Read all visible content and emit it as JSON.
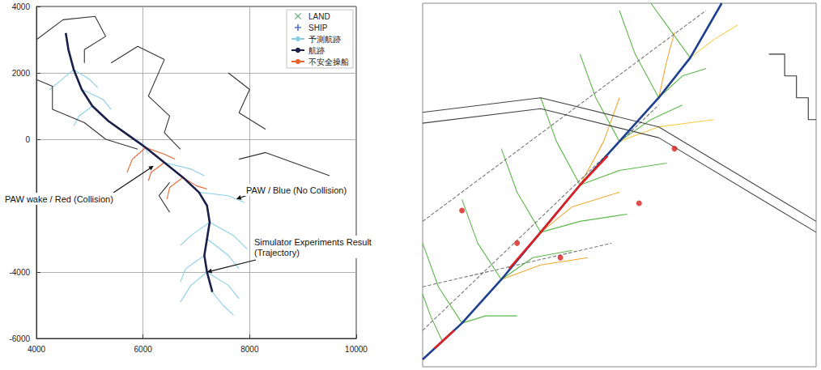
{
  "chart_data": [
    {
      "type": "line",
      "xlim": [
        4000,
        10000
      ],
      "ylim": [
        -6000,
        4000
      ],
      "xticks": [
        4000,
        6000,
        8000,
        10000
      ],
      "yticks": [
        -6000,
        -4000,
        0,
        2000,
        4000
      ],
      "grid": true,
      "legend": "upper right",
      "series": [
        {
          "name": "LAND",
          "type": "scatter",
          "marker": "x",
          "color": "#2e8b57",
          "x": [],
          "values": []
        },
        {
          "name": "SHIP",
          "type": "scatter",
          "marker": "plus",
          "color": "#1f4fbf",
          "x": [],
          "values": []
        },
        {
          "name": "予測航跡",
          "type": "line",
          "color": "#8ccfe8",
          "line_style": "solid",
          "x": [
            4700,
            4400,
            4250,
            null,
            4700,
            5000,
            5150,
            null,
            4850,
            5250,
            5400,
            null,
            5050,
            4800,
            4700,
            null,
            5700,
            6000,
            6100,
            null,
            6400,
            6900,
            7150,
            null,
            7050,
            7600,
            7900,
            null,
            7250,
            6900,
            6700,
            null,
            7250,
            7700,
            7950,
            null,
            7200,
            7600,
            7800,
            null,
            7150,
            6800,
            6700,
            null,
            7200,
            7600,
            7800,
            null,
            7200,
            6900,
            6700,
            null,
            7300,
            7500,
            7700
          ],
          "values": [
            2100,
            1700,
            1500,
            null,
            2100,
            1800,
            1550,
            null,
            1500,
            1200,
            900,
            null,
            1000,
            700,
            400,
            null,
            150,
            -150,
            -450,
            null,
            -700,
            -900,
            -1100,
            null,
            -1600,
            -1700,
            -1900,
            null,
            -2500,
            -2900,
            -3200,
            null,
            -2500,
            -2900,
            -3300,
            null,
            -3000,
            -3500,
            -3900,
            null,
            -3500,
            -3900,
            -4300,
            null,
            -4000,
            -4400,
            -4800,
            null,
            -4000,
            -4400,
            -4900,
            null,
            -4600,
            -5000,
            -5300
          ]
        },
        {
          "name": "航跡",
          "type": "line",
          "color": "#1b1f4a",
          "line_style": "thick",
          "x": [
            4550,
            4600,
            4700,
            4850,
            5050,
            5350,
            5700,
            6050,
            6400,
            6750,
            7050,
            7200,
            7250,
            7200,
            7150,
            7200,
            7300
          ],
          "values": [
            3200,
            2700,
            2100,
            1500,
            1000,
            550,
            150,
            -250,
            -700,
            -1150,
            -1600,
            -2000,
            -2500,
            -3000,
            -3500,
            -4000,
            -4600
          ]
        },
        {
          "name": "不安全操船",
          "type": "line",
          "color": "#e8652e",
          "line_style": "solid",
          "x": [
            6050,
            5800,
            5700,
            null,
            6400,
            6150,
            6100,
            null,
            6750,
            6500,
            6450,
            null,
            6050,
            6400,
            6600,
            null,
            6750,
            7000,
            7200
          ],
          "values": [
            -250,
            -600,
            -1000,
            null,
            -700,
            -1000,
            -1250,
            null,
            -1150,
            -1450,
            -1800,
            null,
            -250,
            -450,
            -600,
            null,
            -1150,
            -1400,
            -1500
          ]
        },
        {
          "type": "line",
          "color": "#333333",
          "line_style": "solid",
          "x": [
            4000,
            4500,
            5100,
            5300,
            4900,
            4900,
            null,
            4000,
            4300,
            4300,
            4900,
            5300,
            5900,
            null,
            5400,
            5900,
            6400,
            6100,
            6500,
            6400,
            6700,
            null,
            7600,
            8000,
            7800,
            8300,
            null,
            6500,
            6300,
            6500,
            null,
            7800,
            8300,
            9500
          ],
          "values": [
            3000,
            3600,
            3700,
            3100,
            2700,
            2300,
            null,
            1800,
            1600,
            900,
            500,
            0,
            -300,
            null,
            2300,
            2800,
            2400,
            1300,
            700,
            200,
            -300,
            null,
            2000,
            1500,
            800,
            300,
            null,
            -1300,
            -1700,
            -2200,
            null,
            -600,
            -400,
            -1100
          ]
        }
      ],
      "annotations": [
        "PAW wake / Red (Collision)",
        "PAW / Blue (No Collision)",
        "Simulator Experiments Result (Trajectory)"
      ]
    },
    {
      "type": "line",
      "xlim": [
        0,
        100
      ],
      "ylim": [
        0,
        100
      ],
      "grid": false,
      "tick_labels": false,
      "series": [
        {
          "type": "line",
          "color": "#5cb84a",
          "line_style": "solid",
          "x": [
            10,
            4,
            0,
            null,
            20,
            14,
            10,
            null,
            20,
            28,
            38,
            null,
            30,
            24,
            20,
            null,
            30,
            40,
            52,
            null,
            40,
            34,
            30,
            null,
            40,
            50,
            62,
            null,
            50,
            44,
            40,
            null,
            50,
            58,
            66,
            null,
            60,
            54,
            50,
            null,
            60,
            66,
            72,
            null,
            68,
            62,
            58,
            null,
            10,
            16,
            24,
            null,
            5,
            2,
            0
          ],
          "values": [
            12,
            22,
            34,
            null,
            24,
            34,
            46,
            null,
            24,
            30,
            32,
            null,
            37,
            48,
            60,
            null,
            37,
            40,
            42,
            null,
            50,
            62,
            74,
            null,
            50,
            54,
            56,
            null,
            62,
            74,
            86,
            null,
            62,
            68,
            72,
            null,
            74,
            86,
            98,
            null,
            74,
            80,
            82,
            null,
            85,
            94,
            100,
            null,
            12,
            14,
            14,
            null,
            7,
            14,
            20
          ]
        },
        {
          "type": "line",
          "color": "#f0a830",
          "line_style": "solid",
          "x": [
            40,
            46,
            50,
            null,
            60,
            62,
            64,
            null,
            30,
            38,
            50,
            null,
            20,
            30,
            42
          ],
          "values": [
            50,
            62,
            74,
            null,
            74,
            84,
            92,
            null,
            37,
            44,
            48,
            null,
            24,
            28,
            30
          ]
        },
        {
          "type": "line",
          "color": "#f5d04a",
          "line_style": "solid",
          "x": [
            50,
            60,
            74,
            null,
            68,
            74,
            80
          ],
          "values": [
            62,
            66,
            68,
            null,
            85,
            90,
            94
          ]
        },
        {
          "type": "line",
          "color": "#777777",
          "line_style": "dashed",
          "x": [
            0,
            60,
            null,
            0,
            72,
            null,
            0,
            48
          ],
          "values": [
            10,
            72,
            null,
            40,
            98,
            null,
            22,
            34
          ]
        },
        {
          "type": "line",
          "color": "#444444",
          "line_style": "solid",
          "x": [
            0,
            30,
            60,
            100,
            null,
            0,
            30,
            60,
            100
          ],
          "values": [
            70,
            74,
            66,
            40,
            null,
            67,
            71,
            63,
            37
          ]
        },
        {
          "type": "line",
          "color": "#333333",
          "line_style": "solid",
          "x": [
            88,
            92,
            92,
            95,
            95,
            98,
            98,
            100
          ],
          "values": [
            86,
            86,
            80,
            80,
            74,
            74,
            68,
            68
          ]
        },
        {
          "type": "line",
          "color": "#1f3f8f",
          "line_style": "thick",
          "x": [
            0,
            10,
            20,
            30,
            40,
            50,
            60,
            68,
            76
          ],
          "values": [
            2,
            12,
            24,
            37,
            50,
            62,
            74,
            85,
            100
          ]
        },
        {
          "type": "line",
          "color": "#e02020",
          "line_style": "thick",
          "x": [
            3,
            8,
            null,
            22,
            30,
            40,
            47
          ],
          "values": [
            5,
            10,
            null,
            27,
            37,
            50,
            58
          ]
        },
        {
          "type": "scatter",
          "marker": "circle",
          "color": "#d81e1e",
          "x": [
            64,
            10,
            24,
            35,
            55
          ],
          "values": [
            60,
            43,
            34,
            30,
            45
          ]
        }
      ]
    }
  ]
}
